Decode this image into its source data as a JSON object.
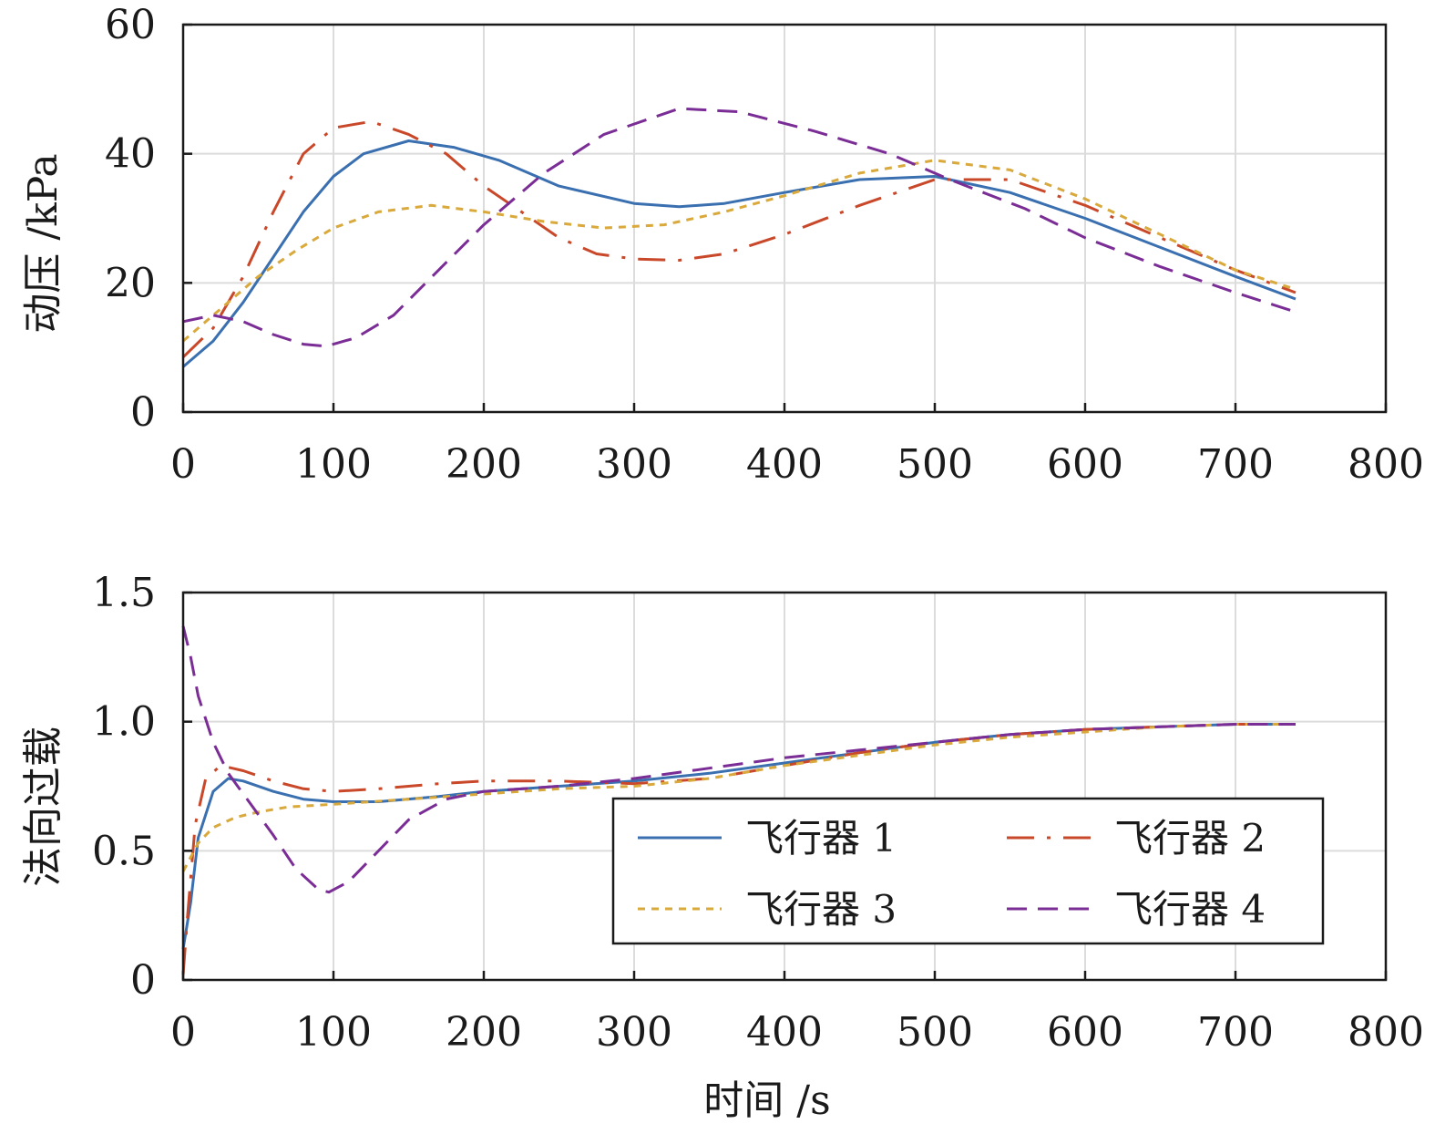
{
  "chart_data": [
    {
      "type": "line",
      "xlabel": "",
      "ylabel": "动压 /kPa",
      "xlim": [
        0,
        800
      ],
      "ylim": [
        0,
        60
      ],
      "xticks": [
        "0",
        "100",
        "200",
        "300",
        "400",
        "500",
        "600",
        "700",
        "800"
      ],
      "yticks": [
        "0",
        "20",
        "40",
        "60"
      ],
      "grid": true,
      "series": [
        {
          "name": "飞行器 1",
          "color": "#3a6fb0",
          "dash": "solid",
          "x": [
            0,
            20,
            40,
            60,
            80,
            100,
            120,
            150,
            180,
            210,
            250,
            300,
            330,
            360,
            400,
            450,
            500,
            550,
            600,
            650,
            700,
            740
          ],
          "y": [
            7,
            11,
            17,
            24,
            31,
            36.5,
            40,
            42,
            41,
            39,
            35,
            32.3,
            31.8,
            32.3,
            34,
            36,
            36.5,
            34,
            30,
            25.5,
            21,
            17.5
          ]
        },
        {
          "name": "飞行器 2",
          "color": "#c9482a",
          "dash": "dash-dot",
          "x": [
            0,
            20,
            40,
            60,
            80,
            100,
            125,
            150,
            175,
            200,
            225,
            250,
            275,
            300,
            330,
            360,
            400,
            450,
            500,
            550,
            600,
            650,
            700,
            740
          ],
          "y": [
            8.5,
            13,
            21,
            31,
            40,
            44,
            45,
            43,
            40,
            35,
            31,
            27,
            24.5,
            23.7,
            23.5,
            24.5,
            27.5,
            32,
            36,
            36,
            32,
            27,
            22,
            18.5
          ]
        },
        {
          "name": "飞行器 3",
          "color": "#d9a93b",
          "dash": "dotted",
          "x": [
            0,
            25,
            50,
            75,
            100,
            130,
            165,
            200,
            240,
            280,
            320,
            360,
            400,
            450,
            500,
            550,
            600,
            650,
            700,
            740
          ],
          "y": [
            11,
            16,
            21,
            25,
            28.5,
            31,
            32,
            31,
            29.5,
            28.5,
            29,
            31,
            33.5,
            37,
            39,
            37.5,
            33,
            27.5,
            22,
            19
          ]
        },
        {
          "name": "飞行器 4",
          "color": "#7b2d96",
          "dash": "dash",
          "x": [
            0,
            20,
            40,
            60,
            80,
            95,
            115,
            140,
            170,
            200,
            240,
            280,
            330,
            370,
            420,
            470,
            510,
            560,
            600,
            650,
            700,
            740
          ],
          "y": [
            14,
            15,
            14,
            12,
            10.5,
            10.2,
            11.5,
            15,
            22,
            29,
            37,
            43,
            47,
            46.5,
            43.5,
            40,
            36,
            31.5,
            27,
            22.5,
            18.5,
            15.5
          ]
        }
      ]
    },
    {
      "type": "line",
      "xlabel": "时间 /s",
      "ylabel": "法向过载",
      "xlim": [
        0,
        800
      ],
      "ylim": [
        0,
        1.5
      ],
      "xticks": [
        "0",
        "100",
        "200",
        "300",
        "400",
        "500",
        "600",
        "700",
        "800"
      ],
      "yticks": [
        "0",
        "0.5",
        "1.0",
        "1.5"
      ],
      "grid": true,
      "legend": {
        "position": "lower-right",
        "columns": 2
      },
      "series": [
        {
          "name": "飞行器 1",
          "color": "#3a6fb0",
          "dash": "solid",
          "x": [
            0,
            5,
            10,
            20,
            30,
            40,
            60,
            80,
            100,
            130,
            170,
            200,
            250,
            300,
            350,
            400,
            450,
            500,
            550,
            600,
            650,
            700,
            740
          ],
          "y": [
            0.12,
            0.3,
            0.55,
            0.73,
            0.78,
            0.77,
            0.73,
            0.7,
            0.69,
            0.69,
            0.71,
            0.73,
            0.75,
            0.77,
            0.8,
            0.84,
            0.88,
            0.92,
            0.95,
            0.97,
            0.98,
            0.99,
            0.99
          ]
        },
        {
          "name": "飞行器 2",
          "color": "#c9482a",
          "dash": "dash-dot",
          "x": [
            0,
            3,
            8,
            15,
            25,
            40,
            60,
            80,
            100,
            130,
            170,
            200,
            250,
            300,
            350,
            400,
            450,
            500,
            550,
            600,
            650,
            700,
            740
          ],
          "y": [
            0.02,
            0.25,
            0.6,
            0.78,
            0.83,
            0.81,
            0.77,
            0.74,
            0.73,
            0.74,
            0.76,
            0.77,
            0.77,
            0.76,
            0.78,
            0.83,
            0.88,
            0.92,
            0.95,
            0.97,
            0.98,
            0.99,
            0.99
          ]
        },
        {
          "name": "飞行器 3",
          "color": "#d9a93b",
          "dash": "dotted",
          "x": [
            0,
            10,
            20,
            35,
            50,
            70,
            100,
            150,
            200,
            250,
            300,
            350,
            400,
            450,
            500,
            550,
            600,
            650,
            700,
            740
          ],
          "y": [
            0.42,
            0.53,
            0.59,
            0.63,
            0.65,
            0.67,
            0.68,
            0.7,
            0.72,
            0.74,
            0.75,
            0.78,
            0.83,
            0.87,
            0.91,
            0.94,
            0.96,
            0.98,
            0.99,
            0.99
          ]
        },
        {
          "name": "飞行器 4",
          "color": "#7b2d96",
          "dash": "dash",
          "x": [
            0,
            5,
            10,
            20,
            30,
            45,
            60,
            75,
            90,
            97,
            110,
            130,
            150,
            175,
            200,
            250,
            300,
            350,
            400,
            450,
            500,
            550,
            600,
            650,
            700,
            740
          ],
          "y": [
            1.37,
            1.25,
            1.1,
            0.92,
            0.8,
            0.68,
            0.56,
            0.43,
            0.35,
            0.34,
            0.38,
            0.5,
            0.62,
            0.7,
            0.73,
            0.75,
            0.78,
            0.82,
            0.86,
            0.89,
            0.92,
            0.95,
            0.97,
            0.98,
            0.99,
            0.99
          ]
        }
      ]
    }
  ]
}
